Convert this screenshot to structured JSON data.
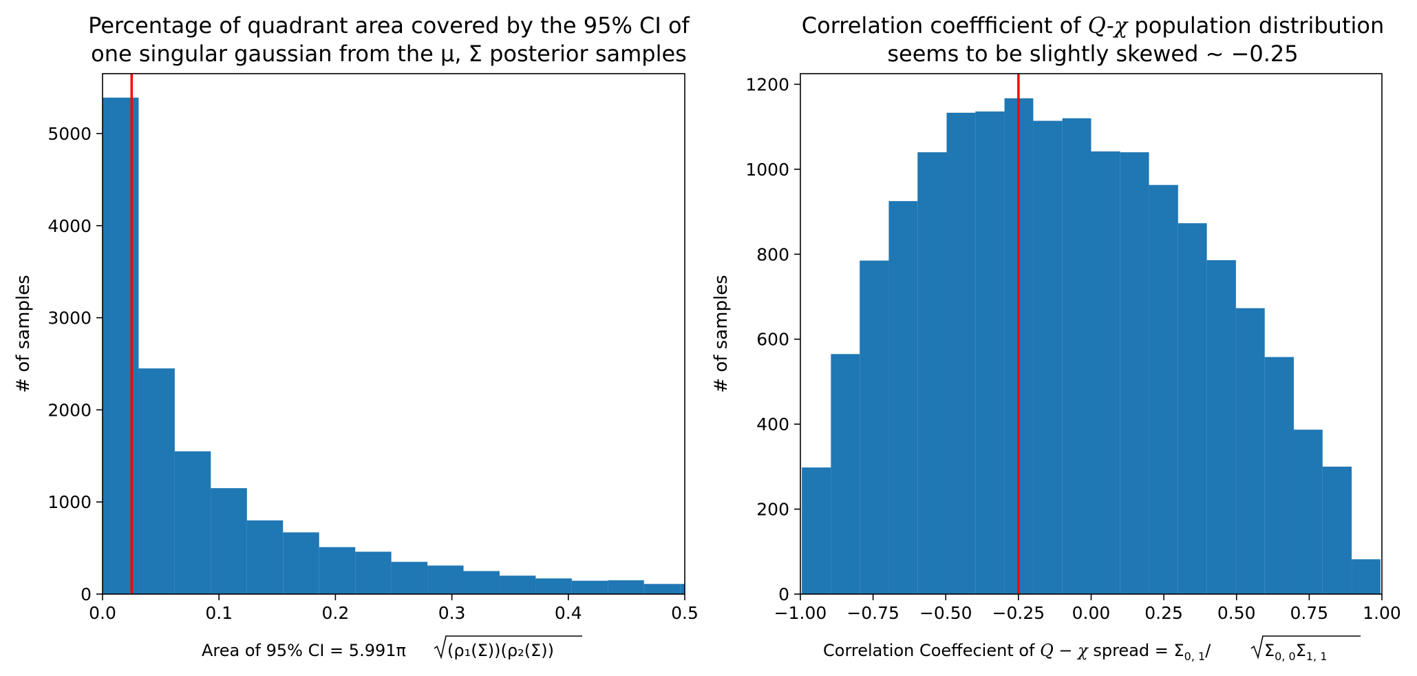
{
  "chart_data": [
    {
      "type": "bar",
      "title_line1": "Percentage of quadrant area covered by the 95% CI of",
      "title_line2": "one singular gaussian from the μ, Σ posterior samples",
      "xlabel_prefix": "Area of 95% CI = 5.991π",
      "xlabel_sqrt_content": "(ρ₁(Σ))(ρ₂(Σ))",
      "ylabel": "# of samples",
      "xlim": [
        0.0,
        0.5
      ],
      "ylim": [
        0,
        5650
      ],
      "xticks": [
        0.0,
        0.1,
        0.2,
        0.3,
        0.4,
        0.5
      ],
      "xtick_labels": [
        "0.0",
        "0.1",
        "0.2",
        "0.3",
        "0.4",
        "0.5"
      ],
      "yticks": [
        0,
        1000,
        2000,
        3000,
        4000,
        5000
      ],
      "ytick_labels": [
        "0",
        "1000",
        "2000",
        "3000",
        "4000",
        "5000"
      ],
      "bin_edges": [
        0.0,
        0.031,
        0.062,
        0.093,
        0.124,
        0.155,
        0.186,
        0.217,
        0.248,
        0.279,
        0.31,
        0.341,
        0.372,
        0.403,
        0.434,
        0.465,
        0.496,
        0.527
      ],
      "counts": [
        5390,
        2450,
        1550,
        1150,
        800,
        670,
        510,
        460,
        350,
        310,
        250,
        200,
        170,
        145,
        150,
        110,
        110
      ],
      "bar_color": "#1f77b4",
      "vline": {
        "x": 0.025,
        "color": "#ff0000"
      }
    },
    {
      "type": "bar",
      "title_line1_prefix": "Correlation coeffficient of ",
      "title_line1_math": "Q-χ",
      "title_line1_suffix": " population distribution",
      "title_line2": "seems to be slightly skewed ~ −0.25",
      "xlabel_prefix": "Correlation Coeffecient of ",
      "xlabel_math": "Q − χ",
      "xlabel_mid": " spread = Σ",
      "xlabel_sub1": "0, 1",
      "xlabel_sqrt_content": "Σ",
      "xlabel_sub2": "0, 0",
      "xlabel_sub3": "1, 1",
      "ylabel": "# of samples",
      "xlim": [
        -1.0,
        1.0
      ],
      "ylim": [
        0,
        1225
      ],
      "xticks": [
        -1.0,
        -0.75,
        -0.5,
        -0.25,
        0.0,
        0.25,
        0.5,
        0.75,
        1.0
      ],
      "xtick_labels": [
        "−1.00",
        "−0.75",
        "−0.50",
        "−0.25",
        "0.00",
        "0.25",
        "0.50",
        "0.75",
        "1.00"
      ],
      "yticks": [
        0,
        200,
        400,
        600,
        800,
        1000,
        1200
      ],
      "ytick_labels": [
        "0",
        "200",
        "400",
        "600",
        "800",
        "1000",
        "1200"
      ],
      "bin_edges": [
        -0.995,
        -0.895,
        -0.796,
        -0.696,
        -0.597,
        -0.497,
        -0.398,
        -0.298,
        -0.199,
        -0.099,
        0.0,
        0.1,
        0.199,
        0.299,
        0.398,
        0.498,
        0.597,
        0.697,
        0.796,
        0.896,
        0.995
      ],
      "counts": [
        298,
        565,
        785,
        925,
        1040,
        1133,
        1136,
        1167,
        1114,
        1120,
        1042,
        1040,
        963,
        873,
        786,
        673,
        558,
        387,
        300,
        82
      ],
      "bar_color": "#1f77b4",
      "vline": {
        "x": -0.25,
        "color": "#ff0000"
      }
    }
  ]
}
